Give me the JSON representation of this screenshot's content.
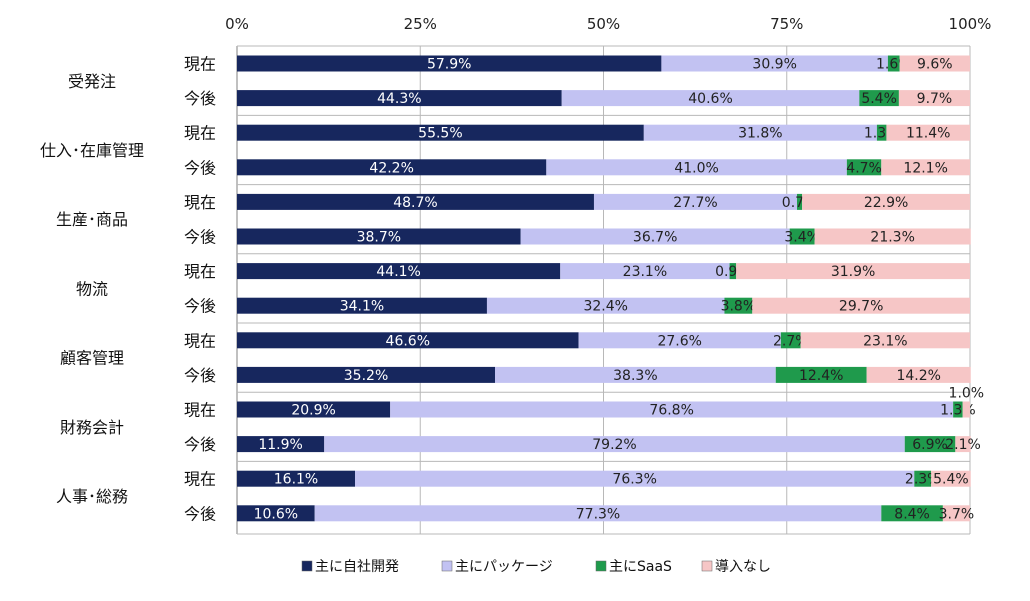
{
  "chart_data": {
    "type": "bar",
    "orientation": "horizontal",
    "stacked": "percent",
    "xlim": [
      0,
      100
    ],
    "x_ticks": [
      "0%",
      "25%",
      "50%",
      "75%",
      "100%"
    ],
    "x_axis_position": "top",
    "grid": true,
    "legend_position": "bottom",
    "groups": [
      {
        "label": "受発注",
        "rows": [
          {
            "label": "現在",
            "values": [
              57.9,
              30.9,
              1.6,
              9.6
            ]
          },
          {
            "label": "今後",
            "values": [
              44.3,
              40.6,
              5.4,
              9.7
            ]
          }
        ]
      },
      {
        "label": "仕入･在庫管理",
        "rows": [
          {
            "label": "現在",
            "values": [
              55.5,
              31.8,
              1.3,
              11.4
            ]
          },
          {
            "label": "今後",
            "values": [
              42.2,
              41.0,
              4.7,
              12.1
            ]
          }
        ]
      },
      {
        "label": "生産･商品",
        "rows": [
          {
            "label": "現在",
            "values": [
              48.7,
              27.7,
              0.7,
              22.9
            ]
          },
          {
            "label": "今後",
            "values": [
              38.7,
              36.7,
              3.4,
              21.3
            ]
          }
        ]
      },
      {
        "label": "物流",
        "rows": [
          {
            "label": "現在",
            "values": [
              44.1,
              23.1,
              0.9,
              31.9
            ]
          },
          {
            "label": "今後",
            "values": [
              34.1,
              32.4,
              3.8,
              29.7
            ]
          }
        ]
      },
      {
        "label": "顧客管理",
        "rows": [
          {
            "label": "現在",
            "values": [
              46.6,
              27.6,
              2.7,
              23.1
            ]
          },
          {
            "label": "今後",
            "values": [
              35.2,
              38.3,
              12.4,
              14.2
            ]
          }
        ]
      },
      {
        "label": "財務会計",
        "rows": [
          {
            "label": "現在",
            "values": [
              20.9,
              76.8,
              1.3,
              1.0
            ]
          },
          {
            "label": "今後",
            "values": [
              11.9,
              79.2,
              6.9,
              2.1
            ]
          }
        ]
      },
      {
        "label": "人事･総務",
        "rows": [
          {
            "label": "現在",
            "values": [
              16.1,
              76.3,
              2.3,
              5.4
            ]
          },
          {
            "label": "今後",
            "values": [
              10.6,
              77.3,
              8.4,
              3.7
            ]
          }
        ]
      }
    ],
    "series": [
      {
        "name": "主に自社開発",
        "color": "#17275e",
        "label_color": "#ffffff"
      },
      {
        "name": "主にパッケージ",
        "color": "#c2c2f2",
        "label_color": "#222222"
      },
      {
        "name": "主にSaaS",
        "color": "#1f9a4c",
        "label_color": "#222222"
      },
      {
        "name": "導入なし",
        "color": "#f6c6c6",
        "label_color": "#222222"
      }
    ]
  }
}
